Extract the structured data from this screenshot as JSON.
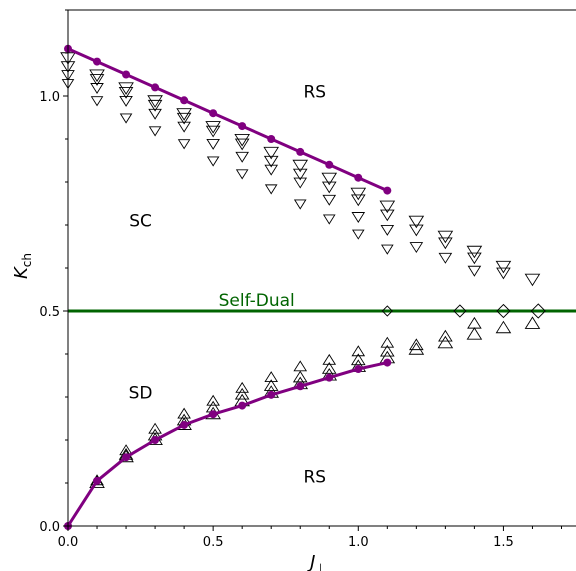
{
  "chart_data": {
    "type": "scatter",
    "xlabel": "J",
    "xlabel_subscript": "⊥",
    "ylabel": "K",
    "ylabel_subscript": "ch",
    "xlim": [
      0.0,
      1.75
    ],
    "ylim": [
      0.0,
      1.2
    ],
    "xticks": [
      "0.0",
      "0.5",
      "1.0",
      "1.5"
    ],
    "xtick_values": [
      0.0,
      0.5,
      1.0,
      1.5
    ],
    "yticks": [
      "0.0",
      "0.5",
      "1.0"
    ],
    "ytick_values": [
      0.0,
      0.5,
      1.0
    ],
    "grid": false,
    "colors": {
      "curve": "#800080",
      "selfdual": "#006400",
      "markers": "#000000"
    },
    "region_labels": [
      {
        "text": "RS",
        "x": 0.85,
        "y": 1.01
      },
      {
        "text": "SC",
        "x": 0.25,
        "y": 0.71
      },
      {
        "text": "SD",
        "x": 0.25,
        "y": 0.31
      },
      {
        "text": "RS",
        "x": 0.85,
        "y": 0.115
      }
    ],
    "selfdual": {
      "label": "Self-Dual",
      "y": 0.5,
      "label_x": 0.65
    },
    "series": [
      {
        "marker": "line-circle",
        "color": "#800080",
        "x": [
          0.0,
          0.1,
          0.2,
          0.3,
          0.4,
          0.5,
          0.6,
          0.7,
          0.8,
          0.9,
          1.0,
          1.1
        ],
        "y": [
          1.11,
          1.08,
          1.05,
          1.02,
          0.99,
          0.96,
          0.93,
          0.9,
          0.87,
          0.84,
          0.81,
          0.78
        ]
      },
      {
        "marker": "line-circle",
        "color": "#800080",
        "x": [
          0.0,
          0.1,
          0.2,
          0.3,
          0.4,
          0.5,
          0.6,
          0.7,
          0.8,
          0.9,
          1.0,
          1.1
        ],
        "y": [
          0.0,
          0.105,
          0.16,
          0.2,
          0.235,
          0.26,
          0.28,
          0.305,
          0.325,
          0.345,
          0.365,
          0.38
        ]
      },
      {
        "marker": "triangle-down",
        "points": [
          {
            "x": 0.0,
            "y": 1.09,
            "s": 11
          },
          {
            "x": 0.0,
            "y": 1.07,
            "s": 10
          },
          {
            "x": 0.0,
            "y": 1.05,
            "s": 9
          },
          {
            "x": 0.0,
            "y": 1.03,
            "s": 8
          },
          {
            "x": 0.1,
            "y": 1.05,
            "s": 11
          },
          {
            "x": 0.1,
            "y": 1.04,
            "s": 10
          },
          {
            "x": 0.1,
            "y": 1.02,
            "s": 9
          },
          {
            "x": 0.1,
            "y": 0.99,
            "s": 8
          },
          {
            "x": 0.2,
            "y": 1.02,
            "s": 11
          },
          {
            "x": 0.2,
            "y": 1.01,
            "s": 10
          },
          {
            "x": 0.2,
            "y": 0.99,
            "s": 9
          },
          {
            "x": 0.2,
            "y": 0.95,
            "s": 8
          },
          {
            "x": 0.3,
            "y": 0.99,
            "s": 11
          },
          {
            "x": 0.3,
            "y": 0.98,
            "s": 10
          },
          {
            "x": 0.3,
            "y": 0.96,
            "s": 9
          },
          {
            "x": 0.3,
            "y": 0.92,
            "s": 8
          },
          {
            "x": 0.4,
            "y": 0.96,
            "s": 11
          },
          {
            "x": 0.4,
            "y": 0.95,
            "s": 10
          },
          {
            "x": 0.4,
            "y": 0.93,
            "s": 9
          },
          {
            "x": 0.4,
            "y": 0.89,
            "s": 8
          },
          {
            "x": 0.5,
            "y": 0.93,
            "s": 11
          },
          {
            "x": 0.5,
            "y": 0.92,
            "s": 10
          },
          {
            "x": 0.5,
            "y": 0.89,
            "s": 9
          },
          {
            "x": 0.5,
            "y": 0.85,
            "s": 8
          },
          {
            "x": 0.6,
            "y": 0.9,
            "s": 11
          },
          {
            "x": 0.6,
            "y": 0.89,
            "s": 10
          },
          {
            "x": 0.6,
            "y": 0.86,
            "s": 9
          },
          {
            "x": 0.6,
            "y": 0.82,
            "s": 8
          },
          {
            "x": 0.7,
            "y": 0.87,
            "s": 11
          },
          {
            "x": 0.7,
            "y": 0.85,
            "s": 10
          },
          {
            "x": 0.7,
            "y": 0.83,
            "s": 9
          },
          {
            "x": 0.7,
            "y": 0.785,
            "s": 8
          },
          {
            "x": 0.8,
            "y": 0.84,
            "s": 11
          },
          {
            "x": 0.8,
            "y": 0.82,
            "s": 10
          },
          {
            "x": 0.8,
            "y": 0.8,
            "s": 9
          },
          {
            "x": 0.8,
            "y": 0.75,
            "s": 8
          },
          {
            "x": 0.9,
            "y": 0.81,
            "s": 11
          },
          {
            "x": 0.9,
            "y": 0.79,
            "s": 10
          },
          {
            "x": 0.9,
            "y": 0.76,
            "s": 9
          },
          {
            "x": 0.9,
            "y": 0.715,
            "s": 8
          },
          {
            "x": 1.0,
            "y": 0.775,
            "s": 11
          },
          {
            "x": 1.0,
            "y": 0.76,
            "s": 10
          },
          {
            "x": 1.0,
            "y": 0.72,
            "s": 9
          },
          {
            "x": 1.0,
            "y": 0.68,
            "s": 8
          },
          {
            "x": 1.1,
            "y": 0.745,
            "s": 11
          },
          {
            "x": 1.1,
            "y": 0.725,
            "s": 10
          },
          {
            "x": 1.1,
            "y": 0.69,
            "s": 9
          },
          {
            "x": 1.1,
            "y": 0.645,
            "s": 8
          },
          {
            "x": 1.2,
            "y": 0.71,
            "s": 11
          },
          {
            "x": 1.2,
            "y": 0.69,
            "s": 10
          },
          {
            "x": 1.2,
            "y": 0.65,
            "s": 9
          },
          {
            "x": 1.3,
            "y": 0.675,
            "s": 11
          },
          {
            "x": 1.3,
            "y": 0.66,
            "s": 10
          },
          {
            "x": 1.3,
            "y": 0.625,
            "s": 9
          },
          {
            "x": 1.4,
            "y": 0.64,
            "s": 11
          },
          {
            "x": 1.4,
            "y": 0.625,
            "s": 10
          },
          {
            "x": 1.4,
            "y": 0.595,
            "s": 9
          },
          {
            "x": 1.5,
            "y": 0.605,
            "s": 11
          },
          {
            "x": 1.5,
            "y": 0.59,
            "s": 10
          },
          {
            "x": 1.6,
            "y": 0.575,
            "s": 11
          }
        ]
      },
      {
        "marker": "triangle-up",
        "points": [
          {
            "x": 0.1,
            "y": 0.1,
            "s": 11
          },
          {
            "x": 0.1,
            "y": 0.105,
            "s": 9
          },
          {
            "x": 0.2,
            "y": 0.16,
            "s": 11
          },
          {
            "x": 0.2,
            "y": 0.165,
            "s": 10
          },
          {
            "x": 0.2,
            "y": 0.175,
            "s": 9
          },
          {
            "x": 0.3,
            "y": 0.2,
            "s": 11
          },
          {
            "x": 0.3,
            "y": 0.21,
            "s": 10
          },
          {
            "x": 0.3,
            "y": 0.225,
            "s": 9
          },
          {
            "x": 0.4,
            "y": 0.235,
            "s": 11
          },
          {
            "x": 0.4,
            "y": 0.245,
            "s": 10
          },
          {
            "x": 0.4,
            "y": 0.26,
            "s": 9
          },
          {
            "x": 0.5,
            "y": 0.26,
            "s": 11
          },
          {
            "x": 0.5,
            "y": 0.275,
            "s": 10
          },
          {
            "x": 0.5,
            "y": 0.29,
            "s": 9
          },
          {
            "x": 0.6,
            "y": 0.29,
            "s": 11
          },
          {
            "x": 0.6,
            "y": 0.305,
            "s": 10
          },
          {
            "x": 0.6,
            "y": 0.32,
            "s": 9
          },
          {
            "x": 0.7,
            "y": 0.31,
            "s": 11
          },
          {
            "x": 0.7,
            "y": 0.325,
            "s": 10
          },
          {
            "x": 0.7,
            "y": 0.345,
            "s": 9
          },
          {
            "x": 0.8,
            "y": 0.33,
            "s": 11
          },
          {
            "x": 0.8,
            "y": 0.345,
            "s": 10
          },
          {
            "x": 0.8,
            "y": 0.37,
            "s": 9
          },
          {
            "x": 0.9,
            "y": 0.35,
            "s": 11
          },
          {
            "x": 0.9,
            "y": 0.365,
            "s": 10
          },
          {
            "x": 0.9,
            "y": 0.385,
            "s": 9
          },
          {
            "x": 1.0,
            "y": 0.37,
            "s": 11
          },
          {
            "x": 1.0,
            "y": 0.385,
            "s": 10
          },
          {
            "x": 1.0,
            "y": 0.405,
            "s": 9
          },
          {
            "x": 1.1,
            "y": 0.39,
            "s": 11
          },
          {
            "x": 1.1,
            "y": 0.405,
            "s": 10
          },
          {
            "x": 1.1,
            "y": 0.425,
            "s": 9
          },
          {
            "x": 1.2,
            "y": 0.41,
            "s": 11
          },
          {
            "x": 1.2,
            "y": 0.42,
            "s": 10
          },
          {
            "x": 1.3,
            "y": 0.425,
            "s": 11
          },
          {
            "x": 1.3,
            "y": 0.44,
            "s": 10
          },
          {
            "x": 1.4,
            "y": 0.445,
            "s": 11
          },
          {
            "x": 1.4,
            "y": 0.47,
            "s": 10
          },
          {
            "x": 1.5,
            "y": 0.46,
            "s": 11
          },
          {
            "x": 1.6,
            "y": 0.47,
            "s": 11
          }
        ]
      },
      {
        "marker": "diamond",
        "points": [
          {
            "x": 1.1,
            "y": 0.5,
            "s": 7
          },
          {
            "x": 1.35,
            "y": 0.5,
            "s": 9
          },
          {
            "x": 1.5,
            "y": 0.5,
            "s": 10
          },
          {
            "x": 1.62,
            "y": 0.5,
            "s": 11
          }
        ]
      }
    ]
  }
}
